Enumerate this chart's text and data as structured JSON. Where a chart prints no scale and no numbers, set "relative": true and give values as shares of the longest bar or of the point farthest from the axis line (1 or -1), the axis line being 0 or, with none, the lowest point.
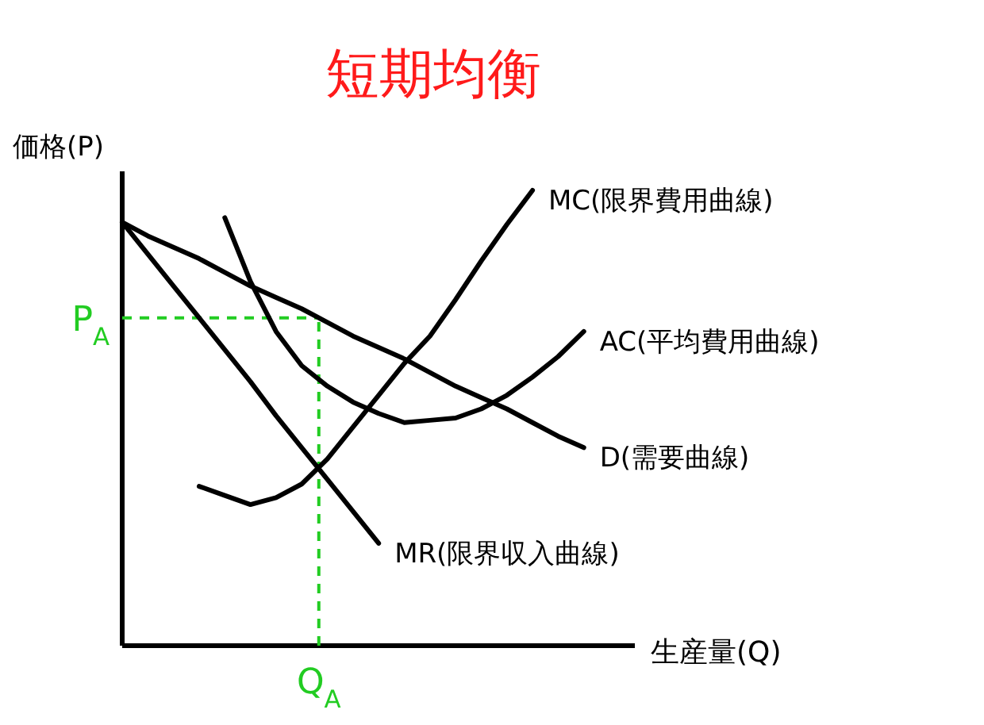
{
  "chart_data": {
    "type": "line",
    "title": "短期均衡",
    "xlabel": "生産量(Q)",
    "ylabel": "価格(P)",
    "relative": true,
    "line_style": "solid",
    "categories": [
      null,
      null,
      null,
      null,
      null,
      null,
      null,
      null,
      null,
      null,
      null,
      null,
      null,
      null,
      null,
      null,
      null,
      null,
      null,
      null
    ],
    "series": [
      {
        "name": "D(需要曲線)",
        "color": "#000000",
        "values": [
          0.93,
          0.9,
          0.875,
          0.85,
          0.82,
          0.79,
          0.765,
          0.74,
          0.71,
          0.68,
          0.655,
          0.63,
          0.6,
          0.57,
          0.545,
          0.52,
          0.49,
          0.46,
          0.435,
          null
        ]
      },
      {
        "name": "MR(限界収入曲線)",
        "color": "#000000",
        "values": [
          0.93,
          0.86,
          0.79,
          0.72,
          0.65,
          0.58,
          0.505,
          0.435,
          0.365,
          0.295,
          0.225,
          null,
          null,
          null,
          null,
          null,
          null,
          null,
          null,
          null
        ]
      },
      {
        "name": "MC(限界費用曲線)",
        "color": "#000000",
        "values": [
          null,
          null,
          null,
          0.35,
          0.33,
          0.31,
          0.325,
          0.355,
          0.41,
          0.48,
          0.55,
          0.62,
          0.68,
          0.76,
          0.845,
          0.925,
          1,
          null,
          null,
          null
        ]
      },
      {
        "name": "AC(平均費用曲線)",
        "color": "#000000",
        "values": [
          null,
          null,
          null,
          null,
          0.94,
          0.8,
          0.69,
          0.615,
          0.57,
          0.535,
          0.51,
          0.49,
          0.495,
          0.5,
          0.52,
          0.55,
          0.59,
          0.635,
          0.69,
          null
        ]
      }
    ],
    "ref_lines": [
      {
        "axis": "y",
        "value": 0.72,
        "label": "P$_{A}$",
        "color": "#22cc22",
        "line_style": "dashed"
      }
    ],
    "annotations": [
      "Q$_{A}$"
    ]
  }
}
